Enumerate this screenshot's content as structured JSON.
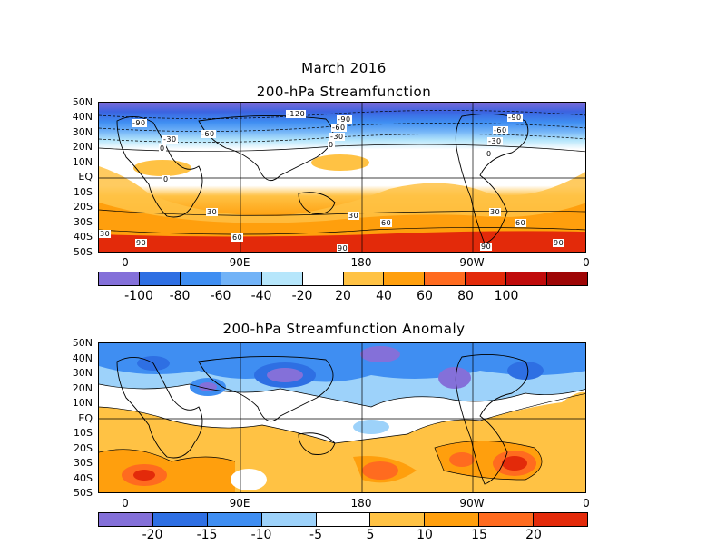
{
  "figure": {
    "month": "March 2016",
    "panel1_title": "200-hPa Streamfunction",
    "panel2_title": "200-hPa Streamfunction Anomaly"
  },
  "lat_labels": [
    "50N",
    "40N",
    "30N",
    "20N",
    "10N",
    "EQ",
    "10S",
    "20S",
    "30S",
    "40S",
    "50S"
  ],
  "lon_labels": [
    "0",
    "90E",
    "180",
    "90W",
    "0"
  ],
  "panel1": {
    "contour_labels": [
      "-90",
      "-60",
      "-30",
      "0",
      "-120",
      "-90",
      "-60",
      "-30",
      "0",
      "-90",
      "-60",
      "-30",
      "0",
      "0",
      "30",
      "30",
      "30",
      "30",
      "60",
      "60",
      "60",
      "90",
      "90",
      "90",
      "90"
    ],
    "colorbar": {
      "colors": [
        "#8470d9",
        "#2e6fe3",
        "#3f8ef2",
        "#72b3f7",
        "#b6e6fb",
        "#ffffff",
        "#ffc244",
        "#ff9f0d",
        "#ff6b1f",
        "#e32a0a",
        "#c00b0b",
        "#9e0606"
      ],
      "labels": [
        "-100",
        "-80",
        "-60",
        "-40",
        "-20",
        "20",
        "40",
        "60",
        "80",
        "100"
      ]
    }
  },
  "panel2": {
    "colorbar": {
      "colors": [
        "#8470d9",
        "#2e6fe3",
        "#3f8ef2",
        "#9dd2fa",
        "#ffffff",
        "#ffc244",
        "#ff9f0d",
        "#ff6b1f",
        "#e32a0a"
      ],
      "labels": [
        "-20",
        "-15",
        "-10",
        "-5",
        "5",
        "10",
        "15",
        "20"
      ]
    }
  },
  "land_outline_color": "#000000"
}
